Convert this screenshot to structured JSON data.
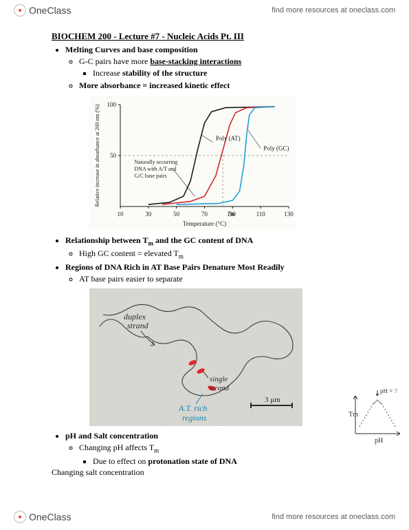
{
  "header": {
    "brand": "OneClass",
    "link_text": "find more resources at oneclass.com"
  },
  "title": "BIOCHEM 200 - Lecture #7 - Nucleic Acids Pt. III",
  "bullets": {
    "b1": "Melting Curves and base composition",
    "b1a_pre": "G-C pairs have more ",
    "b1a_u": "base-stacking interactions",
    "b1a1_pre": "Increase ",
    "b1a1_b": "stability of the structure",
    "b1b": "More absorbance = increased kinetic effect",
    "b2_pre": "Relationship between T",
    "b2_sub": "m",
    "b2_post": " and the GC content of DNA",
    "b2a_pre": "High GC content = elevated T",
    "b2a_sub": "m",
    "b3": "Regions of DNA Rich in AT Base Pairs Denature Most Readily",
    "b3a": "AT base pairs easier to separate",
    "b4": "pH and Salt concentration",
    "b4a_pre": "Changing pH affects T",
    "b4a_sub": "m",
    "b4a1_pre": "Due to effect on ",
    "b4a1_b": "protonation state of DNA",
    "b4_tail": "Changing salt concentration"
  },
  "chart": {
    "type": "line",
    "background_color": "#fbfbf8",
    "axis_color": "#1a1a1a",
    "grid_color": "#cccccc",
    "y_label": "Relative increase in absorbance at 260 nm (%)",
    "x_label": "Temperature (°C)",
    "x_ticks": [
      "10",
      "30",
      "50",
      "70",
      "90",
      "110",
      "130"
    ],
    "y_ticks": [
      "50",
      "100"
    ],
    "annotations": {
      "poly_at": "Poly (AT)",
      "natural": "Naturally occurring DNA with A/T and G/C base pairs",
      "poly_gc": "Poly (GC)",
      "tm": "Tm"
    },
    "series": [
      {
        "name": "poly_at",
        "color": "#1a1a1a",
        "points": [
          [
            30,
            2
          ],
          [
            45,
            4
          ],
          [
            55,
            10
          ],
          [
            60,
            25
          ],
          [
            65,
            55
          ],
          [
            70,
            82
          ],
          [
            75,
            93
          ],
          [
            85,
            97
          ],
          [
            120,
            98
          ]
        ]
      },
      {
        "name": "natural",
        "color": "#d62728",
        "points": [
          [
            40,
            2
          ],
          [
            60,
            5
          ],
          [
            70,
            10
          ],
          [
            78,
            30
          ],
          [
            83,
            55
          ],
          [
            88,
            80
          ],
          [
            92,
            92
          ],
          [
            100,
            97
          ],
          [
            120,
            98
          ]
        ]
      },
      {
        "name": "poly_gc",
        "color": "#1f9fd6",
        "points": [
          [
            50,
            2
          ],
          [
            80,
            3
          ],
          [
            90,
            6
          ],
          [
            95,
            15
          ],
          [
            98,
            40
          ],
          [
            100,
            70
          ],
          [
            102,
            90
          ],
          [
            106,
            97
          ],
          [
            120,
            98
          ]
        ]
      }
    ],
    "xlim": [
      10,
      130
    ],
    "ylim": [
      0,
      100
    ]
  },
  "micrograph": {
    "bg": "#d8d6d0",
    "strand_color": "#3a3a36",
    "highlight_color": "#e2262e",
    "label_color_dark": "#2a2a2a",
    "label_color_blue": "#1483b0",
    "labels": {
      "duplex": "duplex strand",
      "single": "single strand",
      "atrich": "A.T. rich regions",
      "scale": "3 μm"
    }
  },
  "side_sketch": {
    "color": "#2a2a2a",
    "labels": {
      "ph7": "pH = 7",
      "tm": "Tm",
      "ph": "pH"
    },
    "curve_points": [
      [
        8,
        55
      ],
      [
        20,
        35
      ],
      [
        32,
        15
      ],
      [
        40,
        8
      ],
      [
        48,
        15
      ],
      [
        60,
        35
      ],
      [
        72,
        55
      ]
    ]
  }
}
